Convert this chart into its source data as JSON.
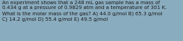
{
  "text": "An experiment shows that a 248 mL gas sample has a mass of\n0.434 g at a pressure of 0.9829 atm and a temperature of 301 K.\nWhat is the molar mass of the gas? A) 44.0 g/mol B) 65.3 g/mol\nC) 14.2 g/mol D) 55.4 g/mol E) 49.5 g/mol",
  "background_color": "#8aacbf",
  "text_color": "#1a1a1a",
  "font_size": 5.2
}
